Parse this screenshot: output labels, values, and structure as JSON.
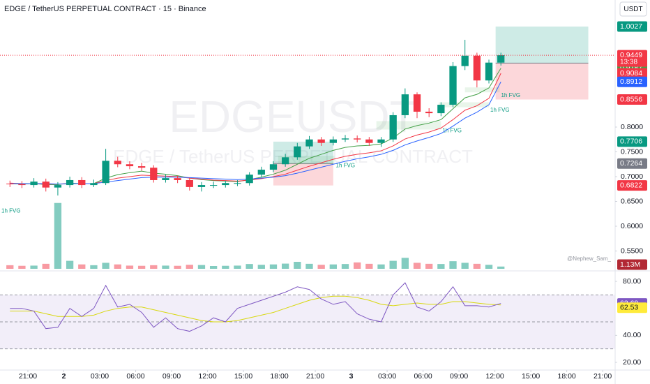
{
  "title": "EDGE / TetherUS PERPETUAL CONTRACT · 15 · Binance",
  "currency": "USDT",
  "watermark": "EDGEUSDT",
  "watermark_sub": "EDGE / TetherUS PERPETUAL CONTRACT",
  "author": "@Nephew_Sam_",
  "chart_data": {
    "type": "candlestick",
    "x": [
      19.5,
      20.5,
      21.5,
      22.5,
      23.5,
      24.5,
      25.5,
      26.5,
      27.5,
      28.5,
      29.5,
      30.5,
      31.5,
      32.5,
      33.5,
      34.5,
      35.5,
      36.5,
      37.5,
      38.5,
      39.5,
      40.5,
      41.5,
      42.5,
      43.5,
      44.5,
      45.5,
      46.5,
      47.5,
      48.5,
      49.5,
      50.5,
      51.5,
      52.5,
      53.5,
      54.5,
      55.5,
      56.5,
      57.5,
      58.5,
      59.5,
      60.5
    ],
    "open": [
      0.686,
      0.685,
      0.683,
      0.69,
      0.678,
      0.683,
      0.693,
      0.683,
      0.687,
      0.732,
      0.725,
      0.721,
      0.718,
      0.693,
      0.697,
      0.693,
      0.679,
      0.683,
      0.683,
      0.687,
      0.687,
      0.704,
      0.714,
      0.725,
      0.739,
      0.761,
      0.775,
      0.768,
      0.775,
      0.777,
      0.775,
      0.768,
      0.775,
      0.824,
      0.866,
      0.831,
      0.828,
      0.845,
      0.923,
      0.944,
      0.894,
      0.93
    ],
    "high": [
      0.692,
      0.691,
      0.697,
      0.696,
      0.689,
      0.7,
      0.699,
      0.694,
      0.756,
      0.74,
      0.731,
      0.728,
      0.723,
      0.704,
      0.702,
      0.698,
      0.689,
      0.69,
      0.692,
      0.693,
      0.709,
      0.72,
      0.731,
      0.746,
      0.768,
      0.782,
      0.78,
      0.781,
      0.784,
      0.783,
      0.78,
      0.78,
      0.83,
      0.878,
      0.87,
      0.838,
      0.85,
      0.931,
      0.976,
      0.95,
      0.936,
      0.95
    ],
    "low": [
      0.679,
      0.677,
      0.678,
      0.67,
      0.662,
      0.678,
      0.677,
      0.679,
      0.683,
      0.719,
      0.715,
      0.712,
      0.688,
      0.688,
      0.687,
      0.672,
      0.67,
      0.677,
      0.678,
      0.681,
      0.682,
      0.699,
      0.709,
      0.72,
      0.734,
      0.756,
      0.762,
      0.763,
      0.77,
      0.769,
      0.762,
      0.76,
      0.77,
      0.818,
      0.818,
      0.82,
      0.822,
      0.84,
      0.915,
      0.88,
      0.888,
      0.924
    ],
    "close": [
      0.685,
      0.683,
      0.69,
      0.678,
      0.683,
      0.693,
      0.683,
      0.687,
      0.732,
      0.725,
      0.721,
      0.718,
      0.693,
      0.697,
      0.693,
      0.679,
      0.683,
      0.683,
      0.687,
      0.687,
      0.704,
      0.714,
      0.725,
      0.739,
      0.761,
      0.775,
      0.768,
      0.775,
      0.777,
      0.775,
      0.768,
      0.775,
      0.824,
      0.866,
      0.831,
      0.828,
      0.845,
      0.923,
      0.944,
      0.894,
      0.93,
      0.9449
    ],
    "up_color": "#089981",
    "down_color": "#f23645",
    "countdown": "13:38",
    "ylim": [
      0.5141,
      1.0563
    ],
    "yticks": [
      {
        "value": 0.55,
        "label": "0.5500"
      },
      {
        "value": 0.6,
        "label": "0.6000"
      },
      {
        "value": 0.65,
        "label": "0.6500"
      },
      {
        "value": 0.7,
        "label": "0.7000"
      },
      {
        "value": 0.75,
        "label": "0.7500"
      },
      {
        "value": 0.8,
        "label": "0.8000"
      }
    ],
    "xlim": [
      18.67,
      70.04
    ],
    "xticks": [
      {
        "value": 21,
        "label": "21:00"
      },
      {
        "value": 24,
        "label": "2"
      },
      {
        "value": 27,
        "label": "03:00"
      },
      {
        "value": 30,
        "label": "06:00"
      },
      {
        "value": 33,
        "label": "09:00"
      },
      {
        "value": 36,
        "label": "12:00"
      },
      {
        "value": 39,
        "label": "15:00"
      },
      {
        "value": 42,
        "label": "18:00"
      },
      {
        "value": 45,
        "label": "21:00"
      },
      {
        "value": 48,
        "label": "3"
      },
      {
        "value": 51,
        "label": "03:00"
      },
      {
        "value": 54,
        "label": "06:00"
      },
      {
        "value": 57,
        "label": "09:00"
      },
      {
        "value": 60,
        "label": "12:00"
      },
      {
        "value": 63,
        "label": "15:00"
      },
      {
        "value": 66,
        "label": "18:00"
      },
      {
        "value": 69,
        "label": "21:00"
      }
    ],
    "moving_averages": [
      {
        "color": "#43a047",
        "values": [
          0.686,
          0.685,
          0.686,
          0.684,
          0.684,
          0.687,
          0.686,
          0.686,
          0.697,
          0.704,
          0.708,
          0.711,
          0.707,
          0.705,
          0.702,
          0.697,
          0.694,
          0.692,
          0.691,
          0.69,
          0.694,
          0.699,
          0.705,
          0.713,
          0.725,
          0.737,
          0.745,
          0.753,
          0.759,
          0.762,
          0.763,
          0.766,
          0.778,
          0.796,
          0.803,
          0.808,
          0.815,
          0.837,
          0.859,
          0.866,
          0.879,
          0.9187
        ]
      },
      {
        "color": "#f23645",
        "values": [
          0.687,
          0.686,
          0.686,
          0.685,
          0.685,
          0.686,
          0.686,
          0.686,
          0.692,
          0.697,
          0.7,
          0.703,
          0.702,
          0.701,
          0.7,
          0.697,
          0.695,
          0.693,
          0.692,
          0.691,
          0.693,
          0.696,
          0.7,
          0.705,
          0.713,
          0.721,
          0.728,
          0.735,
          0.741,
          0.745,
          0.748,
          0.752,
          0.762,
          0.776,
          0.784,
          0.79,
          0.798,
          0.815,
          0.834,
          0.843,
          0.858,
          0.9084
        ]
      },
      {
        "color": "#2962ff",
        "values": [
          0.686,
          0.686,
          0.686,
          0.686,
          0.685,
          0.686,
          0.686,
          0.686,
          0.689,
          0.692,
          0.695,
          0.698,
          0.699,
          0.699,
          0.699,
          0.698,
          0.697,
          0.696,
          0.695,
          0.694,
          0.695,
          0.697,
          0.699,
          0.702,
          0.707,
          0.713,
          0.719,
          0.725,
          0.731,
          0.736,
          0.74,
          0.745,
          0.753,
          0.764,
          0.772,
          0.779,
          0.787,
          0.802,
          0.818,
          0.83,
          0.845,
          0.8912
        ]
      }
    ],
    "volume": {
      "values": [
        1.8,
        1.5,
        1.6,
        2.5,
        33,
        4.0,
        2.2,
        1.8,
        3.0,
        2.2,
        1.6,
        1.5,
        1.8,
        1.6,
        1.5,
        2.0,
        1.9,
        1.4,
        1.5,
        1.6,
        2.4,
        2.0,
        2.2,
        2.6,
        3.5,
        2.5,
        2.0,
        2.2,
        2.4,
        3.2,
        2.5,
        2.2,
        4.0,
        5.5,
        3.0,
        2.5,
        2.4,
        3.8,
        3.0,
        2.5,
        2.0,
        1.13
      ],
      "value_labels": [
        null,
        null,
        null,
        null,
        null,
        null,
        null,
        null,
        null,
        null,
        null,
        null,
        null,
        null,
        null,
        null,
        null,
        null,
        null,
        null,
        null,
        null,
        null,
        null,
        null,
        null,
        null,
        null,
        null,
        null,
        null,
        null,
        null,
        null,
        null,
        null,
        null,
        null,
        null,
        null,
        null,
        "1.13M"
      ],
      "vlim": [
        0,
        35
      ]
    },
    "rsi": {
      "values": [
        60,
        60,
        58,
        45,
        46,
        60,
        54,
        60,
        77,
        61,
        63,
        57,
        46,
        53,
        45,
        43,
        47,
        53,
        50,
        60,
        63,
        66,
        69,
        72,
        76,
        74,
        67,
        63,
        65,
        56,
        52,
        50,
        70,
        79,
        61,
        58,
        65,
        76,
        62,
        62,
        61,
        63.68
      ],
      "ma": [
        58,
        58,
        58,
        56,
        54,
        54,
        54,
        55,
        58,
        60,
        61,
        61,
        59,
        57,
        55,
        53,
        51,
        50,
        50,
        51,
        53,
        55,
        57,
        60,
        63,
        66,
        68,
        69,
        69,
        68,
        66,
        63,
        62,
        63,
        64,
        63,
        63,
        65,
        65,
        64,
        63,
        62.53
      ],
      "color": "#7e57c2",
      "ma_color": "#d8d80f",
      "ylim": [
        14.3,
        86.75
      ],
      "yticks": [
        {
          "value": 80,
          "label": "80.00"
        },
        {
          "value": 40,
          "label": "40.00"
        },
        {
          "value": 20,
          "label": "20.00"
        }
      ],
      "levels": [
        70,
        50,
        30
      ]
    },
    "positions": [
      {
        "x": [
          41.5,
          46.5
        ],
        "target": 0.7706,
        "entry": 0.7264,
        "stop": 0.6822
      },
      {
        "x": [
          60.06,
          67.8
        ],
        "target": 1.0027,
        "entry": 0.9291,
        "stop": 0.8556
      }
    ],
    "fvgs": [
      {
        "label": "1h FVG",
        "x": [
          17.5,
          18.67
        ],
        "range": [
          0.636,
          0.648
        ]
      },
      {
        "label": "1h FVG",
        "x": [
          41.9,
          46.6
        ],
        "range": [
          0.725,
          0.742
        ]
      },
      {
        "label": "1h FVG",
        "x": [
          50.1,
          55.5
        ],
        "range": [
          0.795,
          0.812
        ]
      },
      {
        "label": "1h FVG",
        "x": [
          55.3,
          59.5
        ],
        "range": [
          0.84,
          0.85
        ]
      },
      {
        "label": "1h FVG",
        "x": [
          57.5,
          60.4
        ],
        "range": [
          0.87,
          0.88
        ]
      }
    ]
  }
}
